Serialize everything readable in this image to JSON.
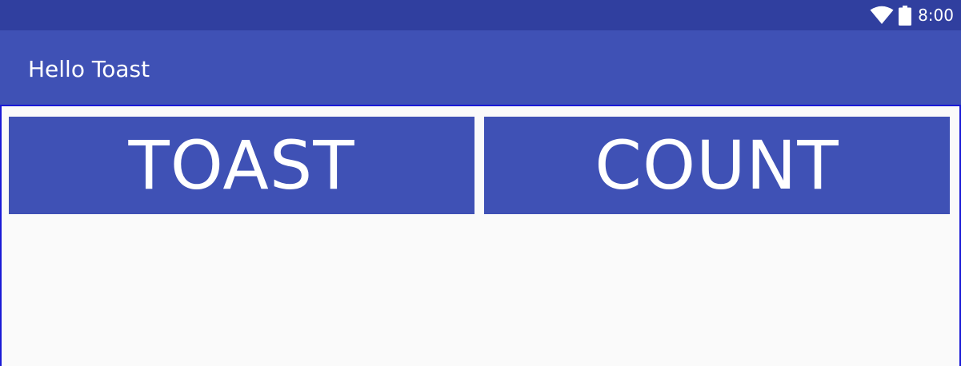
{
  "status_bar": {
    "time": "8:00",
    "icons": [
      "wifi-icon",
      "battery-icon"
    ],
    "color": "#303f9f"
  },
  "app_bar": {
    "title": "Hello Toast",
    "color": "#3f51b5"
  },
  "buttons": {
    "toast_label": "TOAST",
    "count_label": "COUNT",
    "color": "#3f51b5",
    "text_color": "#ffffff"
  },
  "content": {
    "background": "#fafafa",
    "border_color": "#1a1ad6"
  }
}
